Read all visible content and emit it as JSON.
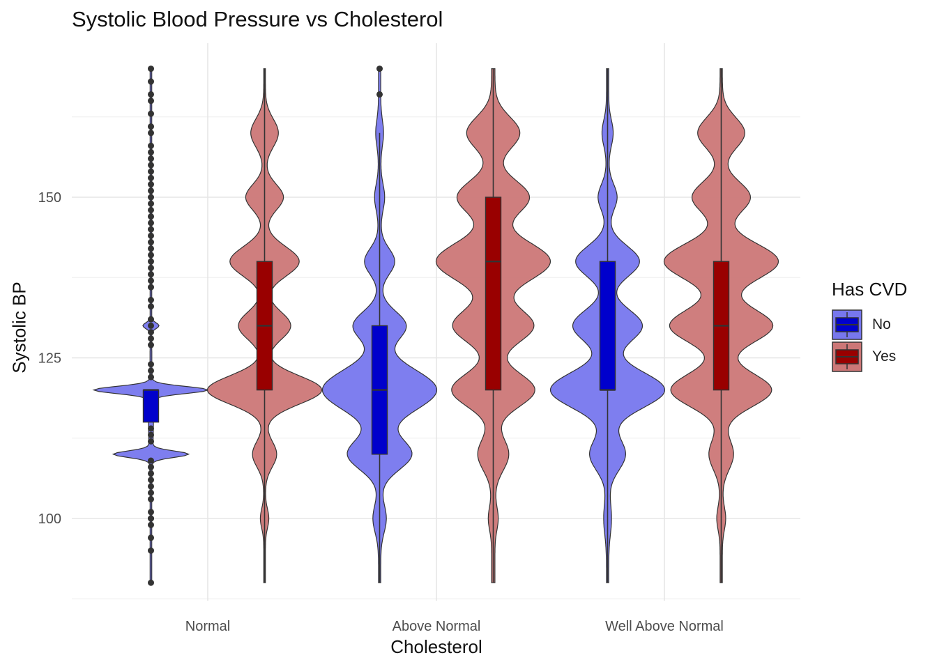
{
  "chart_data": {
    "type": "violin",
    "title": "Systolic Blood Pressure vs Cholesterol",
    "xlabel": "Cholesterol",
    "ylabel": "Systolic BP",
    "categories": [
      "Normal",
      "Above Normal",
      "Well Above Normal"
    ],
    "ylim": [
      88,
      170
    ],
    "yticks": [
      100,
      125,
      150
    ],
    "grid": true,
    "legend": {
      "title": "Has CVD",
      "position": "right"
    },
    "series": [
      {
        "name": "No",
        "fill": "#7777ee",
        "box_fill": "#0000cc",
        "groups": [
          {
            "category": "Normal",
            "min": 90,
            "max": 170,
            "q1": 115,
            "median": 120,
            "q3": 120,
            "whisker_low": 115,
            "whisker_high": 120,
            "outliers": [
              90,
              95,
              97,
              99,
              100,
              100,
              101,
              103,
              104,
              105,
              106,
              107,
              108,
              109,
              112,
              113,
              114,
              122,
              123,
              124,
              127,
              128,
              129,
              130,
              131,
              133,
              134,
              136,
              137,
              138,
              139,
              140,
              141,
              142,
              143,
              144,
              145,
              146,
              147,
              148,
              149,
              150,
              151,
              152,
              153,
              154,
              155,
              156,
              157,
              158,
              160,
              161,
              163,
              165,
              166,
              168,
              170
            ]
          },
          {
            "category": "Above Normal",
            "min": 90,
            "max": 170,
            "q1": 110,
            "median": 120,
            "q3": 130,
            "whisker_low": 90,
            "whisker_high": 160,
            "outliers": [
              166,
              170
            ]
          },
          {
            "category": "Well Above Normal",
            "min": 90,
            "max": 170,
            "q1": 120,
            "median": 120,
            "q3": 140,
            "whisker_low": 90,
            "whisker_high": 170,
            "outliers": []
          }
        ]
      },
      {
        "name": "Yes",
        "fill": "#cc7777",
        "box_fill": "#990000",
        "groups": [
          {
            "category": "Normal",
            "min": 90,
            "max": 170,
            "q1": 120,
            "median": 130,
            "q3": 140,
            "whisker_low": 90,
            "whisker_high": 170,
            "outliers": []
          },
          {
            "category": "Above Normal",
            "min": 90,
            "max": 170,
            "q1": 120,
            "median": 140,
            "q3": 150,
            "whisker_low": 90,
            "whisker_high": 170,
            "outliers": []
          },
          {
            "category": "Well Above Normal",
            "min": 90,
            "max": 170,
            "q1": 120,
            "median": 130,
            "q3": 140,
            "whisker_low": 90,
            "whisker_high": 170,
            "outliers": []
          }
        ]
      }
    ]
  }
}
